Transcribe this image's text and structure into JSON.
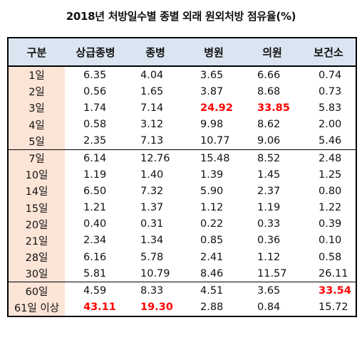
{
  "title": "2018년 처방일수별 종별 외래 원외처방 점유율(%)",
  "headers": [
    "구분",
    "상급종병",
    "종병",
    "병원",
    "의원",
    "보건소"
  ],
  "rows": [
    {
      "label": "1일",
      "values": [
        "6.35",
        "4.04",
        "3.65",
        "6.66",
        "0.74"
      ],
      "highlight": []
    },
    {
      "label": "2일",
      "values": [
        "0.56",
        "1.65",
        "3.87",
        "8.68",
        "0.73"
      ],
      "highlight": []
    },
    {
      "label": "3일",
      "values": [
        "1.74",
        "7.14",
        "24.92",
        "33.85",
        "5.83"
      ],
      "highlight": [
        2,
        3
      ]
    },
    {
      "label": "4일",
      "values": [
        "0.58",
        "3.12",
        "9.98",
        "8.62",
        "2.00"
      ],
      "highlight": []
    },
    {
      "label": "5일",
      "values": [
        "2.35",
        "7.13",
        "10.77",
        "9.06",
        "5.46"
      ],
      "highlight": []
    },
    {
      "label": "7일",
      "values": [
        "6.14",
        "12.76",
        "15.48",
        "8.52",
        "2.48"
      ],
      "highlight": []
    },
    {
      "label": "10일",
      "values": [
        "1.19",
        "1.40",
        "1.39",
        "1.45",
        "1.25"
      ],
      "highlight": []
    },
    {
      "label": "14일",
      "values": [
        "6.50",
        "7.32",
        "5.90",
        "2.37",
        "0.80"
      ],
      "highlight": []
    },
    {
      "label": "15일",
      "values": [
        "1.21",
        "1.37",
        "1.12",
        "1.19",
        "1.22"
      ],
      "highlight": []
    },
    {
      "label": "20일",
      "values": [
        "0.40",
        "0.31",
        "0.22",
        "0.33",
        "0.39"
      ],
      "highlight": []
    },
    {
      "label": "21일",
      "values": [
        "2.34",
        "1.34",
        "0.85",
        "0.36",
        "0.10"
      ],
      "highlight": []
    },
    {
      "label": "28일",
      "values": [
        "6.16",
        "5.78",
        "2.41",
        "1.12",
        "0.58"
      ],
      "highlight": []
    },
    {
      "label": "30일",
      "values": [
        "5.81",
        "10.79",
        "8.46",
        "11.57",
        "26.11"
      ],
      "highlight": []
    },
    {
      "label": "60일",
      "values": [
        "4.59",
        "8.33",
        "4.51",
        "3.65",
        "33.54"
      ],
      "highlight": [
        4
      ]
    },
    {
      "label": "61일 이상",
      "values": [
        "43.11",
        "19.30",
        "2.88",
        "0.84",
        "15.72"
      ],
      "highlight": [
        0,
        1
      ]
    }
  ],
  "colors": {
    "header_bg": "#dbe5f1",
    "label_bg": "#fce4d6",
    "highlight": "#ff0000"
  }
}
